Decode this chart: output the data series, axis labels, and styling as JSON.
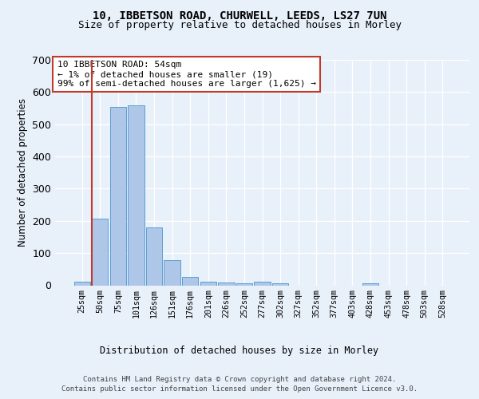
{
  "title1": "10, IBBETSON ROAD, CHURWELL, LEEDS, LS27 7UN",
  "title2": "Size of property relative to detached houses in Morley",
  "xlabel": "Distribution of detached houses by size in Morley",
  "ylabel": "Number of detached properties",
  "bar_labels": [
    "25sqm",
    "50sqm",
    "75sqm",
    "101sqm",
    "126sqm",
    "151sqm",
    "176sqm",
    "201sqm",
    "226sqm",
    "252sqm",
    "277sqm",
    "302sqm",
    "327sqm",
    "352sqm",
    "377sqm",
    "403sqm",
    "428sqm",
    "453sqm",
    "478sqm",
    "503sqm",
    "528sqm"
  ],
  "bar_values": [
    11,
    207,
    553,
    560,
    179,
    77,
    27,
    12,
    8,
    7,
    11,
    5,
    0,
    0,
    0,
    0,
    6,
    0,
    0,
    0,
    0
  ],
  "bar_color": "#aec6e8",
  "bar_edge_color": "#5a9fd4",
  "ylim": [
    0,
    700
  ],
  "yticks": [
    0,
    100,
    200,
    300,
    400,
    500,
    600,
    700
  ],
  "vline_x_index": 1,
  "vline_color": "#c0392b",
  "annotation_text": "10 IBBETSON ROAD: 54sqm\n← 1% of detached houses are smaller (19)\n99% of semi-detached houses are larger (1,625) →",
  "annotation_box_color": "#ffffff",
  "annotation_box_edge_color": "#c0392b",
  "footer1": "Contains HM Land Registry data © Crown copyright and database right 2024.",
  "footer2": "Contains public sector information licensed under the Open Government Licence v3.0.",
  "bg_color": "#e8f0fa",
  "plot_bg_color": "#e8f0fa",
  "grid_color": "#ffffff"
}
